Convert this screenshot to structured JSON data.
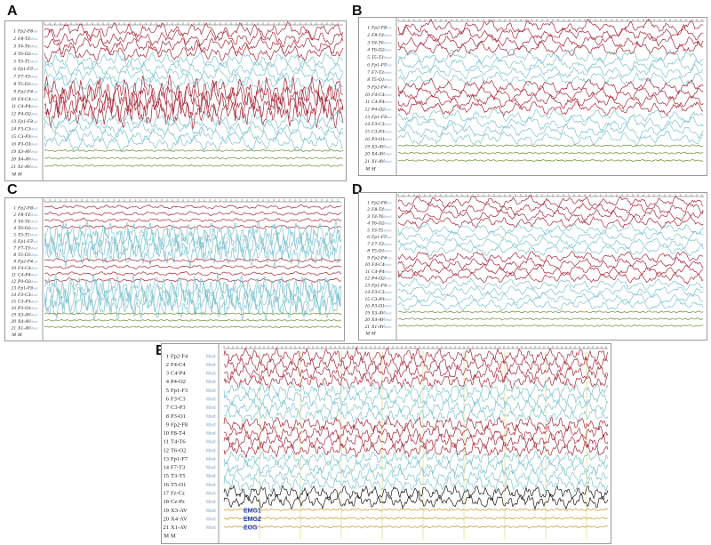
{
  "panels": [
    {
      "letter": "A",
      "dark": 6,
      "channels": [
        "Fp2-F8",
        "F8-T4",
        "T4-T6",
        "T6-O2",
        "T3-T5",
        "Fp1-F7",
        "F7-T3",
        "T5-O1",
        "Fp2-F4",
        "F4-C4",
        "C4-P4",
        "P4-O2",
        "Fp1-F3",
        "F3-C3",
        "C3-P3",
        "P3-O1",
        "X3-AV",
        "X4-AV",
        "X1-AV",
        "M"
      ],
      "nums": [
        "1",
        "2",
        "3",
        "4",
        "5",
        "6",
        "7",
        "8",
        "9",
        "10",
        "11",
        "12",
        "13",
        "14",
        "15",
        "16",
        "19",
        "20",
        "21",
        "M"
      ]
    },
    {
      "letter": "B",
      "dark": 4,
      "channels": [
        "Fp2-F8",
        "F8-T4",
        "T4-T6",
        "T6-O2",
        "T5-T3",
        "Fp1-F7",
        "F7-T3",
        "T5-O1",
        "Fp2-F4",
        "F4-C4",
        "C4-P4",
        "P4-O2",
        "Fp1-F3",
        "F3-C3",
        "C3-P3",
        "P3-O1",
        "X3-AV",
        "X4-AV",
        "X1-AV",
        "M"
      ],
      "nums": [
        "1",
        "2",
        "3",
        "4",
        "5",
        "6",
        "7",
        "8",
        "9",
        "10",
        "11",
        "12",
        "13",
        "14",
        "15",
        "16",
        "19",
        "20",
        "21",
        "M"
      ]
    },
    {
      "letter": "C",
      "dark": 4,
      "channels": [
        "Fp2-F8",
        "F8-T4",
        "T4-T6",
        "T6-O2",
        "T3-T5",
        "Fp1-F7",
        "F7-T3",
        "T5-O1",
        "Fp2-F4",
        "F4-C4",
        "C4-P4",
        "P4-O2",
        "Fp1-F3",
        "F3-C3",
        "C3-P3",
        "P3-O1",
        "X3-AV",
        "X4-AV",
        "X1-AV",
        "M"
      ],
      "nums": [
        "1",
        "2",
        "3",
        "4",
        "5",
        "6",
        "7",
        "8",
        "9",
        "10",
        "11",
        "12",
        "13",
        "14",
        "15",
        "16",
        "19",
        "20",
        "21",
        "M"
      ]
    },
    {
      "letter": "D",
      "dark": 4,
      "channels": [
        "Fp2-F8",
        "F8-T4",
        "T4-T6",
        "T6-O2",
        "T3-T5",
        "Fp1-F7",
        "F7-T3",
        "T5-O1",
        "Fp2-F4",
        "F4-C4",
        "C4-P4",
        "P4-O2",
        "Fp1-F3",
        "F3-C3",
        "C3-P3",
        "P3-O1",
        "X3-AV",
        "X4-AV",
        "X1-AV",
        "M"
      ],
      "nums": [
        "1",
        "2",
        "3",
        "4",
        "5",
        "6",
        "7",
        "8",
        "9",
        "10",
        "11",
        "12",
        "13",
        "14",
        "15",
        "16",
        "19",
        "20",
        "21",
        "M"
      ]
    },
    {
      "letter": "E",
      "dark": 3,
      "channels": [
        "Fp2-F4",
        "F4-C4",
        "C4-P4",
        "P4-O2",
        "Fp1-F3",
        "F3-C3",
        "C3-P3",
        "P3-O1",
        "Fp2-F8",
        "F8-T4",
        "T4-T6",
        "T6-O2",
        "Fp1-F7",
        "F7-T3",
        "T3-T5",
        "T5-O1",
        "Fz-Cz",
        "Cz-Pz",
        "X3-AV",
        "X4-AV",
        "X1-AV",
        "M"
      ],
      "nums": [
        "1",
        "2",
        "3",
        "4",
        "5",
        "6",
        "7",
        "8",
        "9",
        "10",
        "11",
        "12",
        "13",
        "14",
        "15",
        "16",
        "17",
        "18",
        "19",
        "20",
        "21",
        "M"
      ],
      "aux": [
        "EMG1",
        "EMG2",
        "EOG"
      ]
    }
  ],
  "channel_sub_label": "Mwd",
  "colors": {
    "red": "#a8293a",
    "cyan": "#7fc3cf",
    "dark": "#1a1a1a",
    "olive": "#8a8a30",
    "gold": "#c99a2a",
    "grid": "#d9d36a",
    "panel_border": "#9a9a9a"
  }
}
